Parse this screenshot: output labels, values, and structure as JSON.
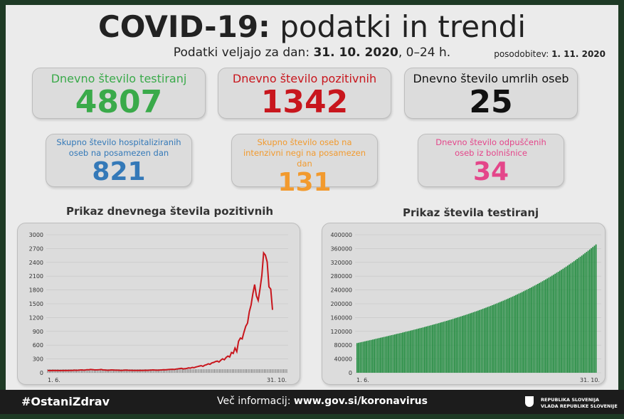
{
  "header": {
    "title_bold": "COVID-19:",
    "title_rest": " podatki in trendi",
    "subtitle_prefix": "Podatki veljajo za dan: ",
    "subtitle_date": "31. 10. 2020",
    "subtitle_suffix": ", 0–24 h.",
    "update_label": "posodobitev: ",
    "update_date": "1. 11. 2020"
  },
  "stats_top": [
    {
      "label": "Dnevno število testiranj",
      "value": "4807",
      "color": "#3aaa4a"
    },
    {
      "label": "Dnevno število pozitivnih",
      "value": "1342",
      "color": "#c8161d"
    },
    {
      "label": "Dnevno število umrlih oseb",
      "value": "25",
      "color": "#111111"
    }
  ],
  "stats_bottom": [
    {
      "label": "Skupno število hospitaliziranih oseb na posamezen dan",
      "value": "821",
      "color": "#3479b8"
    },
    {
      "label": "Skupno število oseb na intenzivni negi na posamezen dan",
      "value": "131",
      "color": "#f29a2e"
    },
    {
      "label": "Dnevno število odpuščenih oseb iz bolnišnice",
      "value": "34",
      "color": "#e4468a"
    }
  ],
  "chart_data": [
    {
      "type": "line",
      "title": "Prikaz dnevnega števila pozitivnih",
      "x_first_label": "1. 6.",
      "x_last_label": "31. 10.",
      "ylim": [
        0,
        3000
      ],
      "y_ticks": [
        "3000",
        "2700",
        "2400",
        "2100",
        "1800",
        "1500",
        "1200",
        "900",
        "600",
        "300",
        "0"
      ],
      "series_color": "#c8161d",
      "values": [
        2,
        1,
        0,
        3,
        1,
        2,
        1,
        0,
        2,
        1,
        3,
        2,
        4,
        5,
        4,
        10,
        6,
        8,
        12,
        15,
        9,
        13,
        20,
        18,
        25,
        22,
        17,
        15,
        18,
        20,
        25,
        16,
        14,
        10,
        8,
        12,
        15,
        13,
        10,
        9,
        8,
        5,
        6,
        10,
        12,
        8,
        7,
        6,
        5,
        4,
        3,
        4,
        6,
        5,
        7,
        8,
        6,
        10,
        12,
        15,
        13,
        9,
        10,
        14,
        16,
        20,
        18,
        22,
        25,
        28,
        30,
        25,
        35,
        40,
        45,
        50,
        38,
        42,
        48,
        60,
        55,
        70,
        65,
        80,
        90,
        100,
        110,
        95,
        120,
        130,
        150,
        140,
        170,
        180,
        200,
        210,
        190,
        230,
        260,
        240,
        290,
        320,
        300,
        400,
        380,
        500,
        420,
        650,
        720,
        700,
        850,
        980,
        1050,
        1300,
        1450,
        1700,
        1900,
        1650,
        1550,
        1800,
        2100,
        2600,
        2550,
        2400,
        1850,
        1800,
        1342
      ],
      "grid": true
    },
    {
      "type": "bar",
      "title": "Prikaz števila testiranj",
      "x_first_label": "1. 6.",
      "x_last_label": "31. 10.",
      "ylim": [
        0,
        400000
      ],
      "y_ticks": [
        "400000",
        "360000",
        "320000",
        "280000",
        "240000",
        "200000",
        "160000",
        "120000",
        "80000",
        "40000",
        "0"
      ],
      "series_color": "#1e8a3c",
      "start_value": 86000,
      "end_value": 372000,
      "bar_count": 153,
      "grid": true
    }
  ],
  "footer": {
    "hashtag": "#OstaniZdrav",
    "more_info_label": "Več informacij: ",
    "more_info_url": "www.gov.si/koronavirus",
    "gov_line1": "REPUBLIKA SLOVENIJA",
    "gov_line2": "VLADA REPUBLIKE SLOVENIJE"
  }
}
